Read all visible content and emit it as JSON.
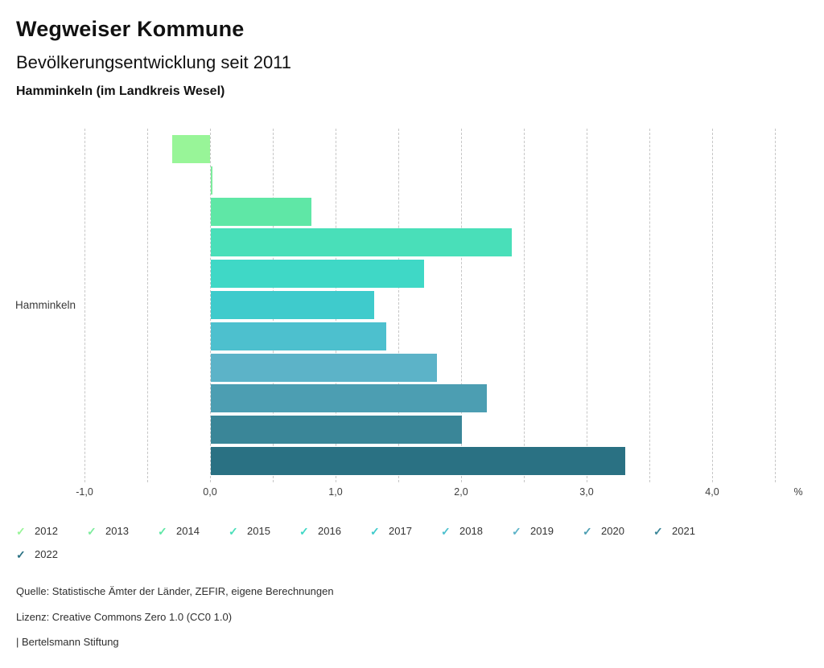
{
  "header": {
    "title": "Wegweiser Kommune",
    "subtitle": "Bevölkerungsentwicklung seit 2011",
    "region": "Hamminkeln (im Landkreis Wesel)"
  },
  "chart_data": {
    "type": "bar",
    "orientation": "horizontal",
    "title": "Bevölkerungsentwicklung seit 2011",
    "group_label": "Hamminkeln",
    "unit": "%",
    "categories": [
      "2012",
      "2013",
      "2014",
      "2015",
      "2016",
      "2017",
      "2018",
      "2019",
      "2020",
      "2021",
      "2022"
    ],
    "values": [
      -0.3,
      0.0,
      0.8,
      2.4,
      1.7,
      1.3,
      1.4,
      1.8,
      2.2,
      2.0,
      3.3
    ],
    "colors": [
      "#98f598",
      "#7dec9d",
      "#5fe7a6",
      "#49dfb9",
      "#3fd8c6",
      "#3fcbcc",
      "#4dc0ce",
      "#5cb3c8",
      "#4c9eb2",
      "#3a8698",
      "#2a7183"
    ],
    "xlim": [
      -1.25,
      4.75
    ],
    "gridlines": [
      -1.0,
      -0.5,
      0.0,
      0.5,
      1.0,
      1.5,
      2.0,
      2.5,
      3.0,
      3.5,
      4.0,
      4.5
    ],
    "x_ticks": [
      {
        "value": -1.0,
        "label": "-1,0"
      },
      {
        "value": 0.0,
        "label": "0,0"
      },
      {
        "value": 1.0,
        "label": "1,0"
      },
      {
        "value": 2.0,
        "label": "2,0"
      },
      {
        "value": 3.0,
        "label": "3,0"
      },
      {
        "value": 4.0,
        "label": "4,0"
      }
    ],
    "axis_unit_label": "%",
    "grid": true,
    "legend_position": "bottom",
    "legend_icon": "✓"
  },
  "footer": {
    "source": "Quelle: Statistische Ämter der Länder, ZEFIR, eigene Berechnungen",
    "license": "Lizenz: Creative Commons Zero 1.0 (CC0 1.0)",
    "attribution": "| Bertelsmann Stiftung"
  }
}
